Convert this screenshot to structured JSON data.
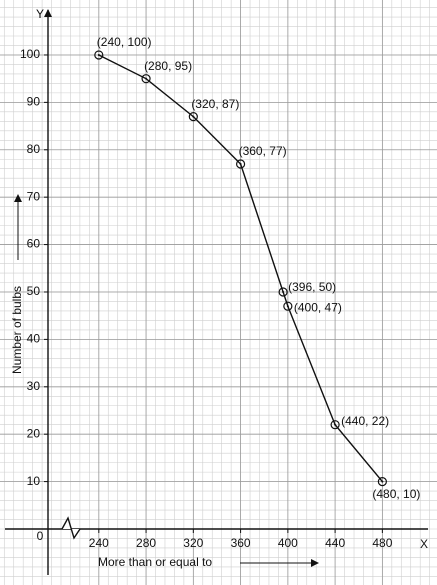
{
  "chart_data": {
    "type": "line",
    "x": [
      240,
      280,
      320,
      360,
      396,
      400,
      440,
      480
    ],
    "values": [
      100,
      95,
      87,
      77,
      50,
      47,
      22,
      10
    ],
    "value_labels": [
      "(240, 100)",
      "(280, 95)",
      "(320, 87)",
      "(360, 77)",
      "(396, 50)",
      "(400, 47)",
      "(440, 22)",
      "(480, 10)"
    ],
    "color": "#111111",
    "xlim": [
      197,
      511
    ],
    "ylim": [
      0,
      109
    ],
    "xticks": [
      240,
      280,
      320,
      360,
      400,
      440,
      480
    ],
    "yticks": [
      10,
      20,
      30,
      40,
      50,
      60,
      70,
      80,
      90,
      100
    ],
    "x_axis_letter": "X",
    "y_axis_letter": "Y",
    "origin_label": "0",
    "xlabel": "More than or equal to",
    "ylabel": "Number of bulbs",
    "grid": true
  }
}
